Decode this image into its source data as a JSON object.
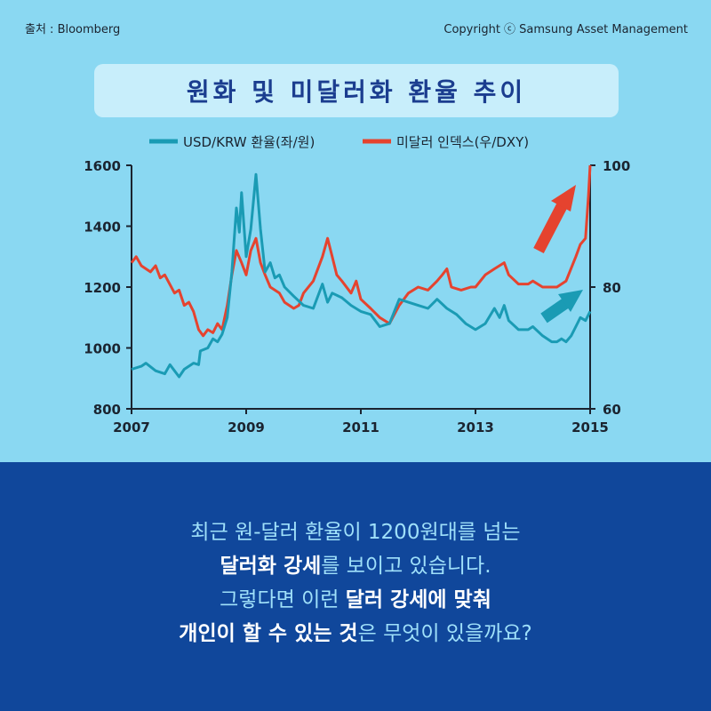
{
  "header": {
    "source": "출처 : Bloomberg",
    "copyright": "Copyright ⓒ Samsung Asset Management",
    "title": "원화 및 미달러화 환율 추이"
  },
  "colors": {
    "usdkrw": "#1a9bb4",
    "dxy": "#e5432f",
    "axis": "#1b2430",
    "bottom_bg": "#10479b"
  },
  "chart_data": {
    "type": "line",
    "x_ticks": [
      "2007",
      "2009",
      "2011",
      "2013",
      "2015"
    ],
    "x_range": [
      2007,
      2015
    ],
    "y_left": {
      "ticks": [
        "1600",
        "1400",
        "1200",
        "1000",
        "800"
      ],
      "range": [
        800,
        1600
      ]
    },
    "y_right": {
      "ticks": [
        "100",
        "80",
        "60"
      ],
      "range": [
        60,
        100
      ]
    },
    "legend_position": "top",
    "series": [
      {
        "name": "USD/KRW 환율(좌/원)",
        "axis": "left",
        "color": "#1a9bb4",
        "points": [
          [
            2007.0,
            930
          ],
          [
            2007.17,
            940
          ],
          [
            2007.25,
            950
          ],
          [
            2007.42,
            925
          ],
          [
            2007.58,
            915
          ],
          [
            2007.67,
            945
          ],
          [
            2007.83,
            905
          ],
          [
            2007.92,
            930
          ],
          [
            2008.08,
            950
          ],
          [
            2008.17,
            945
          ],
          [
            2008.2,
            990
          ],
          [
            2008.33,
            1000
          ],
          [
            2008.42,
            1030
          ],
          [
            2008.5,
            1020
          ],
          [
            2008.58,
            1045
          ],
          [
            2008.67,
            1100
          ],
          [
            2008.75,
            1250
          ],
          [
            2008.83,
            1460
          ],
          [
            2008.88,
            1380
          ],
          [
            2008.92,
            1510
          ],
          [
            2009.0,
            1300
          ],
          [
            2009.08,
            1390
          ],
          [
            2009.17,
            1570
          ],
          [
            2009.25,
            1390
          ],
          [
            2009.33,
            1250
          ],
          [
            2009.42,
            1280
          ],
          [
            2009.5,
            1230
          ],
          [
            2009.58,
            1240
          ],
          [
            2009.67,
            1200
          ],
          [
            2009.83,
            1170
          ],
          [
            2010.0,
            1140
          ],
          [
            2010.17,
            1130
          ],
          [
            2010.33,
            1210
          ],
          [
            2010.42,
            1150
          ],
          [
            2010.5,
            1180
          ],
          [
            2010.67,
            1165
          ],
          [
            2010.83,
            1140
          ],
          [
            2011.0,
            1120
          ],
          [
            2011.17,
            1110
          ],
          [
            2011.33,
            1070
          ],
          [
            2011.5,
            1080
          ],
          [
            2011.67,
            1160
          ],
          [
            2011.83,
            1150
          ],
          [
            2012.0,
            1140
          ],
          [
            2012.17,
            1130
          ],
          [
            2012.33,
            1160
          ],
          [
            2012.5,
            1130
          ],
          [
            2012.67,
            1110
          ],
          [
            2012.83,
            1080
          ],
          [
            2013.0,
            1060
          ],
          [
            2013.17,
            1080
          ],
          [
            2013.33,
            1130
          ],
          [
            2013.42,
            1100
          ],
          [
            2013.5,
            1140
          ],
          [
            2013.58,
            1090
          ],
          [
            2013.75,
            1060
          ],
          [
            2013.92,
            1060
          ],
          [
            2014.0,
            1070
          ],
          [
            2014.17,
            1040
          ],
          [
            2014.33,
            1020
          ],
          [
            2014.42,
            1020
          ],
          [
            2014.5,
            1030
          ],
          [
            2014.58,
            1020
          ],
          [
            2014.67,
            1040
          ],
          [
            2014.75,
            1070
          ],
          [
            2014.83,
            1100
          ],
          [
            2014.92,
            1090
          ],
          [
            2015.0,
            1120
          ]
        ]
      },
      {
        "name": "미달러 인덱스(우/DXY)",
        "axis": "right",
        "color": "#e5432f",
        "points": [
          [
            2007.0,
            84
          ],
          [
            2007.08,
            85
          ],
          [
            2007.17,
            83.5
          ],
          [
            2007.33,
            82.5
          ],
          [
            2007.42,
            83.5
          ],
          [
            2007.5,
            81.5
          ],
          [
            2007.58,
            82
          ],
          [
            2007.75,
            79
          ],
          [
            2007.83,
            79.5
          ],
          [
            2007.92,
            77
          ],
          [
            2008.0,
            77.5
          ],
          [
            2008.08,
            76
          ],
          [
            2008.17,
            73
          ],
          [
            2008.25,
            72
          ],
          [
            2008.33,
            73
          ],
          [
            2008.42,
            72.5
          ],
          [
            2008.5,
            74
          ],
          [
            2008.58,
            73
          ],
          [
            2008.67,
            77
          ],
          [
            2008.75,
            82
          ],
          [
            2008.83,
            86
          ],
          [
            2008.92,
            84
          ],
          [
            2009.0,
            82
          ],
          [
            2009.08,
            86
          ],
          [
            2009.17,
            88
          ],
          [
            2009.25,
            84
          ],
          [
            2009.33,
            82
          ],
          [
            2009.42,
            80
          ],
          [
            2009.58,
            79
          ],
          [
            2009.67,
            77.5
          ],
          [
            2009.83,
            76.5
          ],
          [
            2009.92,
            77
          ],
          [
            2010.0,
            79
          ],
          [
            2010.17,
            81
          ],
          [
            2010.33,
            85
          ],
          [
            2010.42,
            88
          ],
          [
            2010.5,
            85
          ],
          [
            2010.58,
            82
          ],
          [
            2010.67,
            81
          ],
          [
            2010.83,
            79
          ],
          [
            2010.92,
            81
          ],
          [
            2011.0,
            78
          ],
          [
            2011.17,
            76.5
          ],
          [
            2011.33,
            75
          ],
          [
            2011.5,
            74
          ],
          [
            2011.67,
            77
          ],
          [
            2011.83,
            79
          ],
          [
            2012.0,
            80
          ],
          [
            2012.17,
            79.5
          ],
          [
            2012.33,
            81
          ],
          [
            2012.42,
            82
          ],
          [
            2012.5,
            83
          ],
          [
            2012.58,
            80
          ],
          [
            2012.75,
            79.5
          ],
          [
            2012.92,
            80
          ],
          [
            2013.0,
            80
          ],
          [
            2013.17,
            82
          ],
          [
            2013.33,
            83
          ],
          [
            2013.5,
            84
          ],
          [
            2013.58,
            82
          ],
          [
            2013.75,
            80.5
          ],
          [
            2013.92,
            80.5
          ],
          [
            2014.0,
            81
          ],
          [
            2014.17,
            80
          ],
          [
            2014.33,
            80
          ],
          [
            2014.42,
            80
          ],
          [
            2014.58,
            81
          ],
          [
            2014.75,
            85
          ],
          [
            2014.83,
            87
          ],
          [
            2014.92,
            88
          ],
          [
            2014.97,
            95
          ],
          [
            2015.0,
            100
          ]
        ]
      }
    ]
  },
  "message": {
    "line1": "최근 원-달러 환율이 1200원대를 넘는",
    "line2_bold": "달러화 강세",
    "line2_rest": "를 보이고 있습니다.",
    "line3_pre": "그렇다면 이런 ",
    "line3_bold": "달러 강세에 맞춰",
    "line4_bold": "개인이 할 수 있는 것",
    "line4_rest": "은 무엇이 있을까요?"
  }
}
